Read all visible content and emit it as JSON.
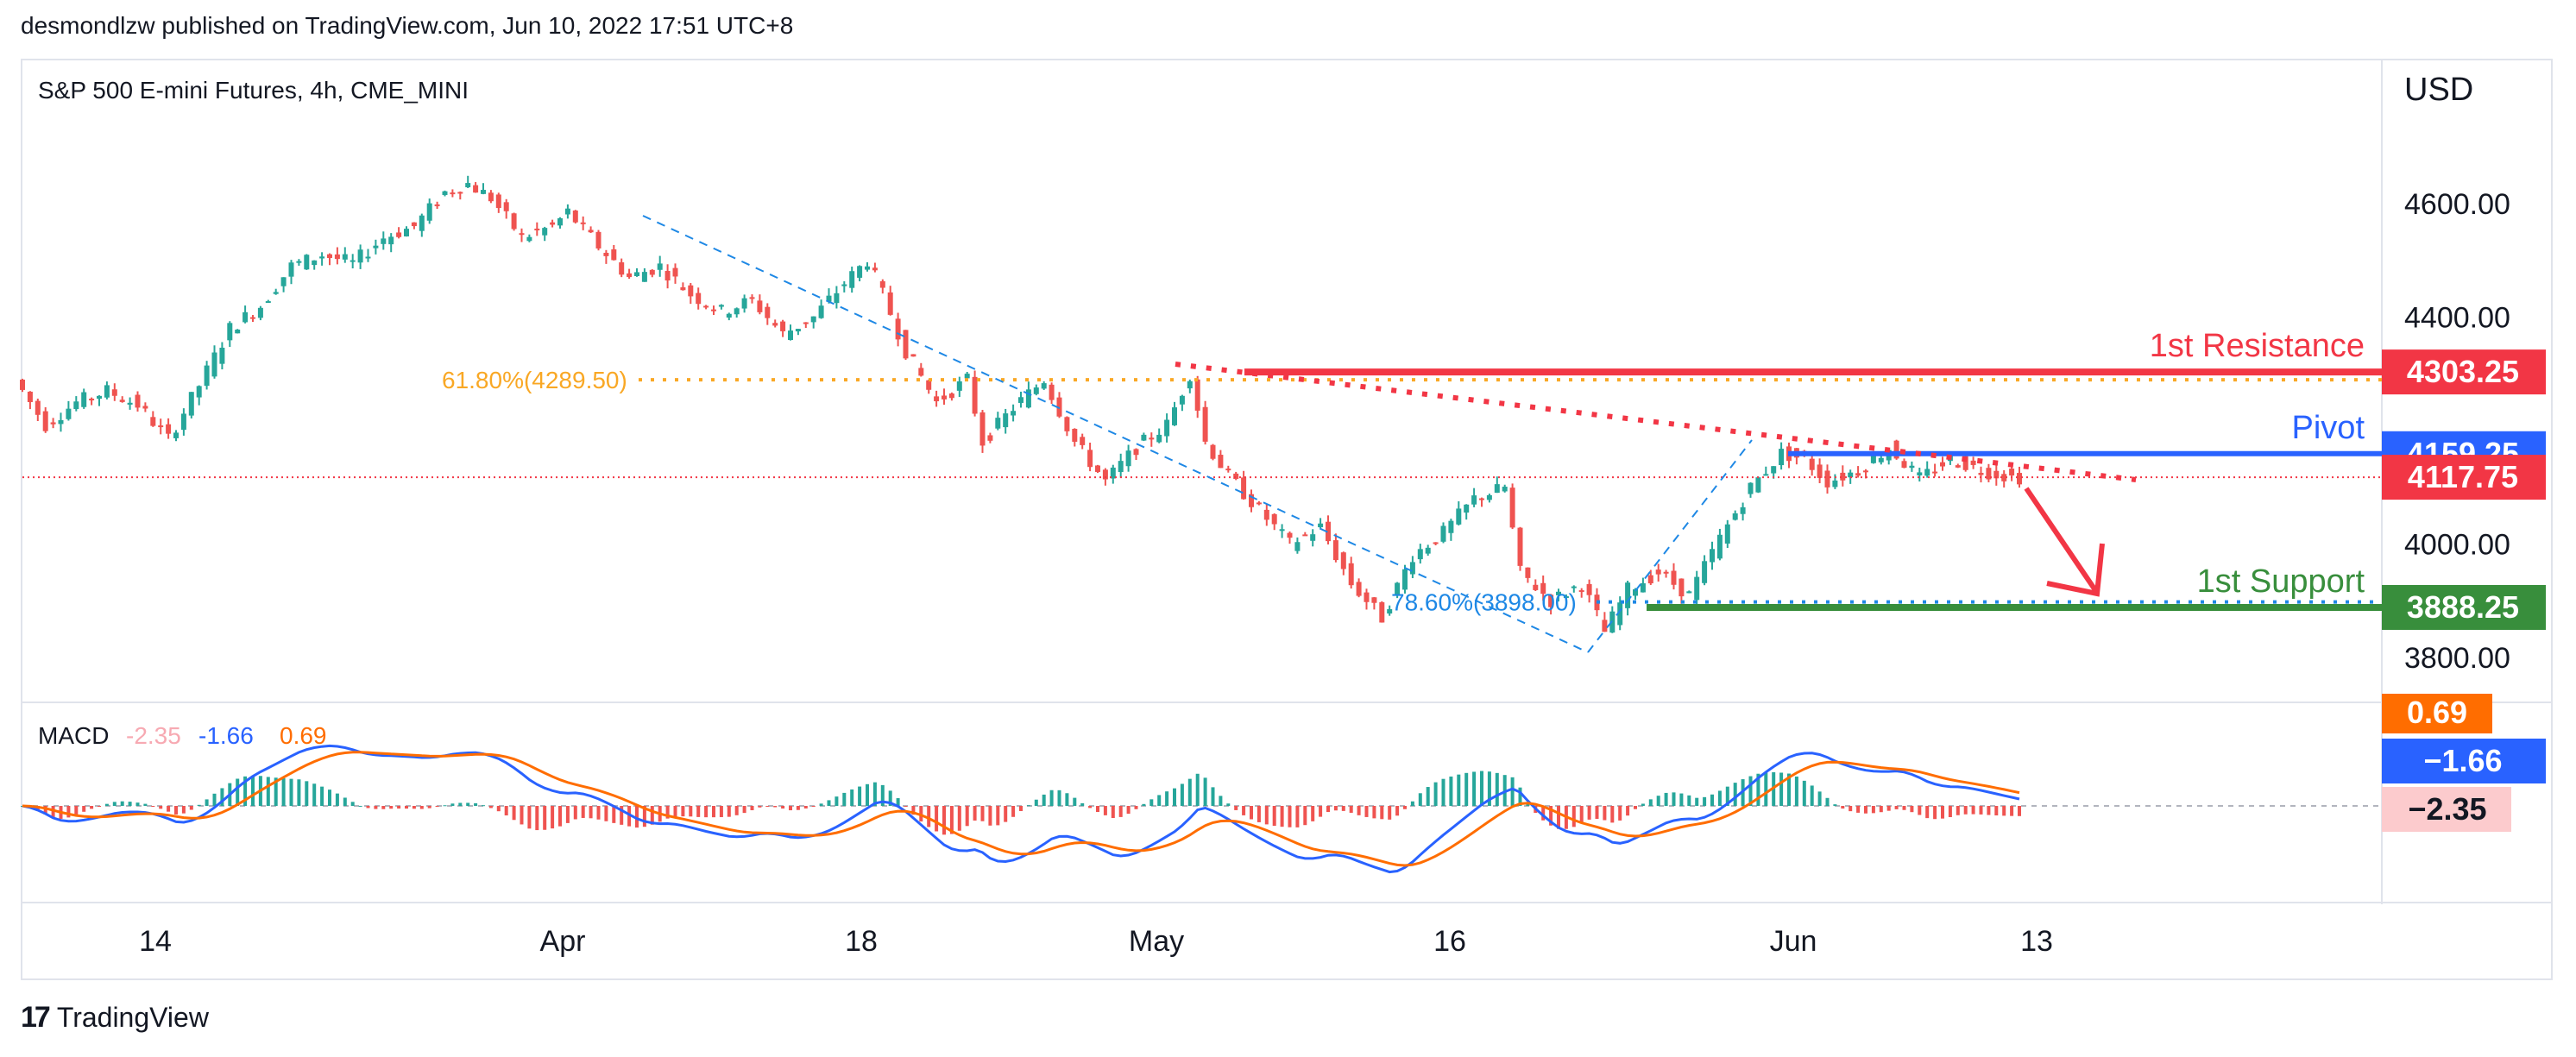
{
  "header": {
    "text": "desmondlzw published on TradingView.com, Jun 10, 2022 17:51 UTC+8"
  },
  "footer": {
    "brand": "TradingView"
  },
  "chart_data": [
    {
      "type": "candlestick",
      "title": "S&P 500 E-mini Futures, 4h, CME_MINI",
      "currency": "USD",
      "y_ticks": [
        4600.0,
        4400.0,
        4000.0,
        3800.0
      ],
      "y_tick_labels": [
        "4600.00",
        "4400.00",
        "4000.00",
        "3800.00"
      ],
      "ylim": [
        3755,
        4730
      ],
      "x_ticks": [
        "14",
        "Apr",
        "18",
        "May",
        "16",
        "Jun",
        "13"
      ],
      "price_path": [
        {
          "i": 0,
          "p": 4290
        },
        {
          "i": 4,
          "p": 4210
        },
        {
          "i": 8,
          "p": 4250
        },
        {
          "i": 12,
          "p": 4270
        },
        {
          "i": 16,
          "p": 4245
        },
        {
          "i": 20,
          "p": 4185
        },
        {
          "i": 24,
          "p": 4280
        },
        {
          "i": 28,
          "p": 4380
        },
        {
          "i": 32,
          "p": 4420
        },
        {
          "i": 36,
          "p": 4490
        },
        {
          "i": 40,
          "p": 4510
        },
        {
          "i": 44,
          "p": 4495
        },
        {
          "i": 48,
          "p": 4540
        },
        {
          "i": 52,
          "p": 4560
        },
        {
          "i": 56,
          "p": 4620
        },
        {
          "i": 59,
          "p": 4635
        },
        {
          "i": 62,
          "p": 4610
        },
        {
          "i": 66,
          "p": 4540
        },
        {
          "i": 70,
          "p": 4560
        },
        {
          "i": 72,
          "p": 4585
        },
        {
          "i": 76,
          "p": 4525
        },
        {
          "i": 80,
          "p": 4470
        },
        {
          "i": 84,
          "p": 4490
        },
        {
          "i": 88,
          "p": 4440
        },
        {
          "i": 92,
          "p": 4410
        },
        {
          "i": 96,
          "p": 4430
        },
        {
          "i": 100,
          "p": 4370
        },
        {
          "i": 104,
          "p": 4400
        },
        {
          "i": 108,
          "p": 4460
        },
        {
          "i": 111,
          "p": 4500
        },
        {
          "i": 113,
          "p": 4440
        },
        {
          "i": 116,
          "p": 4340
        },
        {
          "i": 120,
          "p": 4250
        },
        {
          "i": 124,
          "p": 4290
        },
        {
          "i": 126,
          "p": 4180
        },
        {
          "i": 130,
          "p": 4240
        },
        {
          "i": 134,
          "p": 4290
        },
        {
          "i": 138,
          "p": 4180
        },
        {
          "i": 142,
          "p": 4110
        },
        {
          "i": 146,
          "p": 4170
        },
        {
          "i": 150,
          "p": 4210
        },
        {
          "i": 153,
          "p": 4300
        },
        {
          "i": 155,
          "p": 4180
        },
        {
          "i": 158,
          "p": 4120
        },
        {
          "i": 162,
          "p": 4060
        },
        {
          "i": 166,
          "p": 4000
        },
        {
          "i": 170,
          "p": 4030
        },
        {
          "i": 174,
          "p": 3930
        },
        {
          "i": 178,
          "p": 3870
        },
        {
          "i": 182,
          "p": 3980
        },
        {
          "i": 186,
          "p": 4020
        },
        {
          "i": 190,
          "p": 4080
        },
        {
          "i": 194,
          "p": 4100
        },
        {
          "i": 196,
          "p": 3950
        },
        {
          "i": 200,
          "p": 3900
        },
        {
          "i": 204,
          "p": 3930
        },
        {
          "i": 207,
          "p": 3845
        },
        {
          "i": 210,
          "p": 3920
        },
        {
          "i": 214,
          "p": 3950
        },
        {
          "i": 218,
          "p": 3910
        },
        {
          "i": 222,
          "p": 4010
        },
        {
          "i": 226,
          "p": 4100
        },
        {
          "i": 230,
          "p": 4160
        },
        {
          "i": 233,
          "p": 4150
        },
        {
          "i": 236,
          "p": 4110
        },
        {
          "i": 240,
          "p": 4130
        },
        {
          "i": 244,
          "p": 4170
        },
        {
          "i": 248,
          "p": 4115
        },
        {
          "i": 252,
          "p": 4150
        },
        {
          "i": 256,
          "p": 4130
        },
        {
          "i": 260,
          "p": 4117.75
        }
      ],
      "current_price_line": 4117.75,
      "fibonacci": [
        {
          "label": "61.80%(4289.50)",
          "value": 4289.5,
          "color": "#f9a825"
        },
        {
          "label": "78.60%(3898.00)",
          "value": 3898.0,
          "color": "#1e88e5"
        }
      ],
      "levels": [
        {
          "label": "1st Resistance",
          "value": 4303.25,
          "value_label": "4303.25",
          "color": "#f23645"
        },
        {
          "label": "Pivot",
          "value": 4159.25,
          "value_label": "4159.25",
          "color": "#2962ff"
        },
        {
          "label": "1st Support",
          "value": 3888.25,
          "value_label": "3888.25",
          "color": "#388e3c"
        }
      ],
      "last_price_badge": {
        "value_label": "4117.75",
        "color": "#f23645"
      }
    },
    {
      "type": "macd",
      "title": "MACD",
      "values": [
        "-2.35",
        "-1.66",
        "0.69"
      ],
      "value_colors": [
        "#f7a9b2",
        "#2962ff",
        "#ff6d00"
      ],
      "badges": [
        {
          "value_label": "0.69",
          "bg": "#ff6d00",
          "fg": "#ffffff"
        },
        {
          "value_label": "−1.66",
          "bg": "#2962ff",
          "fg": "#ffffff"
        },
        {
          "value_label": "−2.35",
          "bg": "#fccbcd",
          "fg": "#131722"
        }
      ]
    }
  ]
}
